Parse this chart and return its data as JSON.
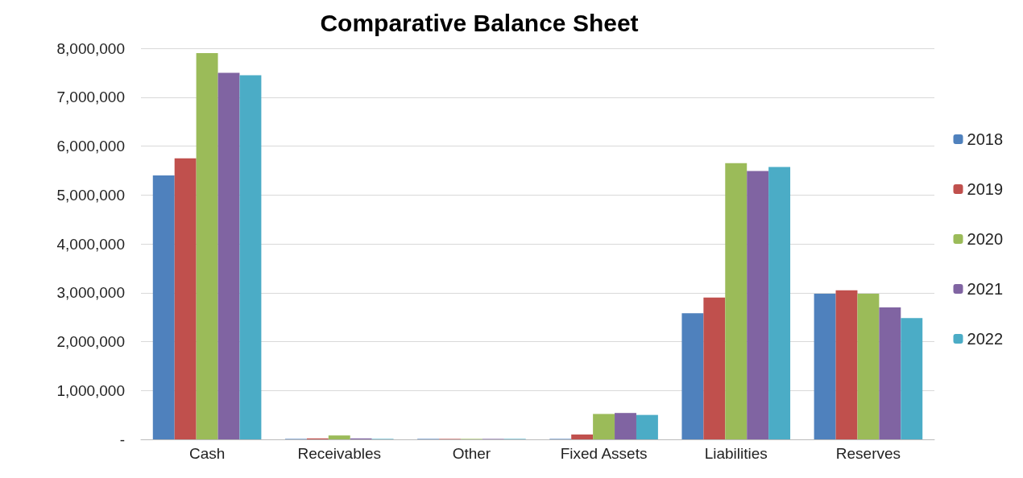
{
  "chart_data": {
    "type": "bar",
    "title": "Comparative Balance Sheet",
    "categories": [
      "Cash",
      "Receivables",
      "Other",
      "Fixed Assets",
      "Liabilities",
      "Reserves"
    ],
    "series": [
      {
        "name": "2018",
        "color": "#4f81bd",
        "values": [
          5400000,
          10000,
          10000,
          10000,
          2580000,
          2980000
        ]
      },
      {
        "name": "2019",
        "color": "#c0504d",
        "values": [
          5750000,
          20000,
          10000,
          100000,
          2900000,
          3050000
        ]
      },
      {
        "name": "2020",
        "color": "#9bbb59",
        "values": [
          7900000,
          80000,
          10000,
          520000,
          5650000,
          2980000
        ]
      },
      {
        "name": "2021",
        "color": "#8064a2",
        "values": [
          7500000,
          20000,
          10000,
          540000,
          5490000,
          2700000
        ]
      },
      {
        "name": "2022",
        "color": "#4bacc6",
        "values": [
          7450000,
          10000,
          10000,
          500000,
          5570000,
          2480000
        ]
      }
    ],
    "ylim": [
      0,
      8000000
    ],
    "yticks": [
      {
        "value": 0,
        "label": "-"
      },
      {
        "value": 1000000,
        "label": "1,000,000"
      },
      {
        "value": 2000000,
        "label": "2,000,000"
      },
      {
        "value": 3000000,
        "label": "3,000,000"
      },
      {
        "value": 4000000,
        "label": "4,000,000"
      },
      {
        "value": 5000000,
        "label": "5,000,000"
      },
      {
        "value": 6000000,
        "label": "6,000,000"
      },
      {
        "value": 7000000,
        "label": "7,000,000"
      },
      {
        "value": 8000000,
        "label": "8,000,000"
      }
    ],
    "grid": "y",
    "legend": "right"
  }
}
